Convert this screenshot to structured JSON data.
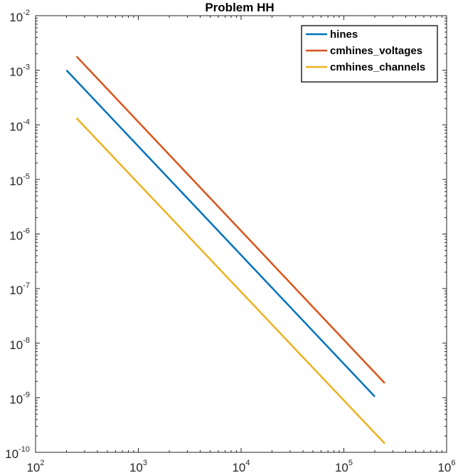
{
  "chart_data": {
    "type": "line",
    "title": "Problem HH",
    "xlabel": "",
    "ylabel": "",
    "xscale": "log",
    "yscale": "log",
    "xlim": [
      100,
      1000000
    ],
    "ylim": [
      1e-10,
      0.01
    ],
    "x_ticks": [
      {
        "base": "10",
        "exp": "2",
        "value": 100
      },
      {
        "base": "10",
        "exp": "3",
        "value": 1000
      },
      {
        "base": "10",
        "exp": "4",
        "value": 10000
      },
      {
        "base": "10",
        "exp": "5",
        "value": 100000
      },
      {
        "base": "10",
        "exp": "6",
        "value": 1000000
      }
    ],
    "y_ticks": [
      {
        "base": "10",
        "exp": "-2",
        "value": 0.01
      },
      {
        "base": "10",
        "exp": "-3",
        "value": 0.001
      },
      {
        "base": "10",
        "exp": "-4",
        "value": 0.0001
      },
      {
        "base": "10",
        "exp": "-5",
        "value": 1e-05
      },
      {
        "base": "10",
        "exp": "-6",
        "value": 1e-06
      },
      {
        "base": "10",
        "exp": "-7",
        "value": 1e-07
      },
      {
        "base": "10",
        "exp": "-8",
        "value": 1e-08
      },
      {
        "base": "10",
        "exp": "-9",
        "value": 1e-09
      },
      {
        "base": "10",
        "exp": "-10",
        "value": 1e-10
      }
    ],
    "grid": false,
    "legend_position": "top-right",
    "series": [
      {
        "name": "hines",
        "color": "#0072bd",
        "x": [
          200,
          200000
        ],
        "y": [
          0.001,
          1.05e-09
        ]
      },
      {
        "name": "cmhines_voltages",
        "color": "#d95319",
        "x": [
          250,
          250000
        ],
        "y": [
          0.0018,
          1.85e-09
        ]
      },
      {
        "name": "cmhines_channels",
        "color": "#edb120",
        "x": [
          250,
          250000
        ],
        "y": [
          0.000133,
          1.45e-10
        ]
      }
    ]
  }
}
